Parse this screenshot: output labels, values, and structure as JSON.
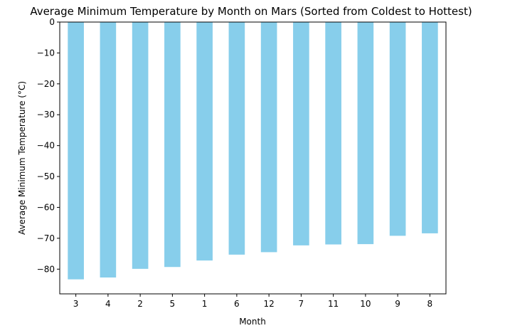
{
  "chart_data": {
    "type": "bar",
    "title": "Average Minimum Temperature by Month on Mars (Sorted from Coldest to Hottest)",
    "xlabel": "Month",
    "ylabel": "Average Minimum Temperature (°C)",
    "categories": [
      "3",
      "4",
      "2",
      "5",
      "1",
      "6",
      "12",
      "7",
      "11",
      "10",
      "9",
      "8"
    ],
    "values": [
      -83.3,
      -82.7,
      -79.9,
      -79.3,
      -77.2,
      -75.3,
      -74.5,
      -72.3,
      -72.0,
      -71.9,
      -69.2,
      -68.4
    ],
    "ylim": [
      -88,
      0
    ],
    "yticks": [
      0,
      -10,
      -20,
      -30,
      -40,
      -50,
      -60,
      -70,
      -80
    ],
    "ytick_labels": [
      "0",
      "−10",
      "−20",
      "−30",
      "−40",
      "−50",
      "−60",
      "−70",
      "−80"
    ],
    "bar_color": "#87ceeb",
    "grid": false,
    "legend": "none"
  }
}
